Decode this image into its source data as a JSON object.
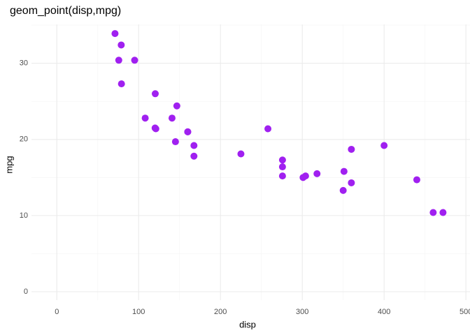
{
  "chart_data": {
    "type": "scatter",
    "title": "geom_point(disp,mpg)",
    "x_label": "disp",
    "y_label": "mpg",
    "series": [
      {
        "name": "points",
        "color": "#a020f0",
        "x": [
          160,
          160,
          108,
          258,
          360,
          225,
          360,
          146.7,
          140.8,
          167.6,
          167.6,
          275.8,
          275.8,
          275.8,
          472,
          460,
          440,
          78.7,
          75.7,
          71.1,
          120.1,
          318,
          304,
          350,
          400,
          79,
          120.3,
          95.1,
          351,
          145,
          301,
          121
        ],
        "values": [
          21.0,
          21.0,
          22.8,
          21.4,
          18.7,
          18.1,
          14.3,
          24.4,
          22.8,
          19.2,
          17.8,
          16.4,
          17.3,
          15.2,
          10.4,
          10.4,
          14.7,
          32.4,
          30.4,
          33.9,
          21.5,
          15.5,
          15.2,
          13.3,
          19.2,
          27.3,
          26.0,
          30.4,
          15.8,
          19.7,
          15.0,
          21.4
        ]
      }
    ],
    "xlim": [
      -31,
      505
    ],
    "xticks": [
      0,
      100,
      200,
      300,
      400,
      500
    ],
    "ylim": [
      -1.1,
      35.1
    ],
    "yticks": [
      0,
      10,
      20,
      30
    ],
    "grid": true
  }
}
